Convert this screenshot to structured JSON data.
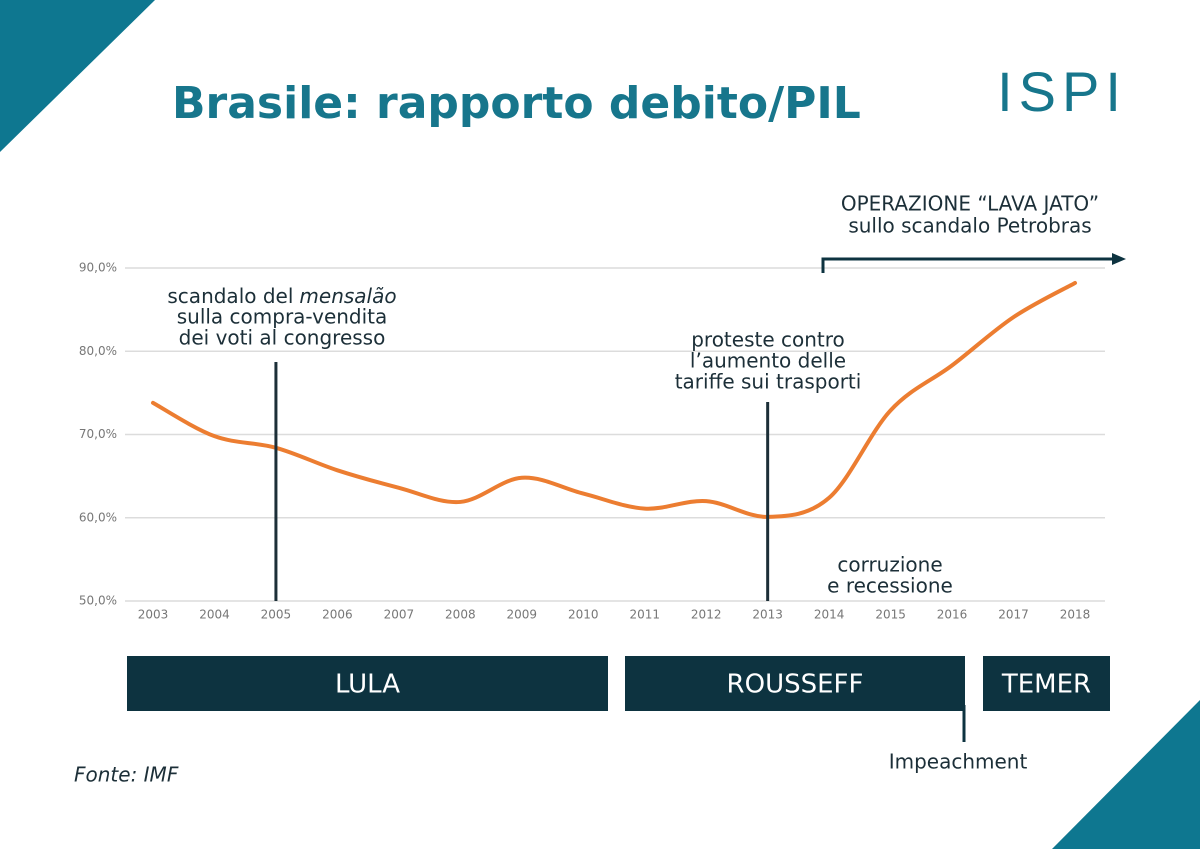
{
  "chart_data": {
    "type": "line",
    "title": "Brasile: rapporto debito/PIL",
    "logo": "ISPI",
    "source": "Fonte: IMF",
    "x": [
      2003,
      2004,
      2005,
      2006,
      2007,
      2008,
      2009,
      2010,
      2011,
      2012,
      2013,
      2014,
      2015,
      2016,
      2017,
      2018
    ],
    "xlim": [
      2003,
      2018
    ],
    "xticks": [
      2003,
      2004,
      2005,
      2006,
      2007,
      2008,
      2009,
      2010,
      2011,
      2012,
      2013,
      2014,
      2015,
      2016,
      2017,
      2018
    ],
    "series": [
      {
        "color": "#ec7d31",
        "values": [
          73.8,
          69.8,
          68.4,
          65.7,
          63.6,
          61.9,
          64.8,
          62.9,
          61.1,
          62.0,
          60.1,
          62.4,
          72.9,
          78.3,
          84.1,
          88.2
        ]
      }
    ],
    "ylim": [
      50,
      90
    ],
    "yticks": [
      {
        "value": 50,
        "label": "50,0%"
      },
      {
        "value": 60,
        "label": "60,0%"
      },
      {
        "value": 70,
        "label": "70,0%"
      },
      {
        "value": 80,
        "label": "80,0%"
      },
      {
        "value": 90,
        "label": "90,0%"
      }
    ],
    "grid": true,
    "annotations": [
      {
        "x": 2005,
        "prefix": "scandalo del",
        "emphasis": "mensalão",
        "lines": [
          "sulla compra-vendita",
          "dei voti al congresso"
        ]
      },
      {
        "x": 2013,
        "lines": [
          "proteste contro",
          "l’aumento delle",
          "tariffe sui trasporti"
        ]
      }
    ],
    "notes": {
      "lava_jato": [
        "OPERAZIONE “LAVA JATO”",
        "sullo scandalo Petrobras"
      ],
      "recession": [
        "corruzione",
        "e recessione"
      ],
      "impeachment": "Impeachment"
    },
    "periods": [
      "LULA",
      "ROUSSEFF",
      "TEMER"
    ]
  }
}
